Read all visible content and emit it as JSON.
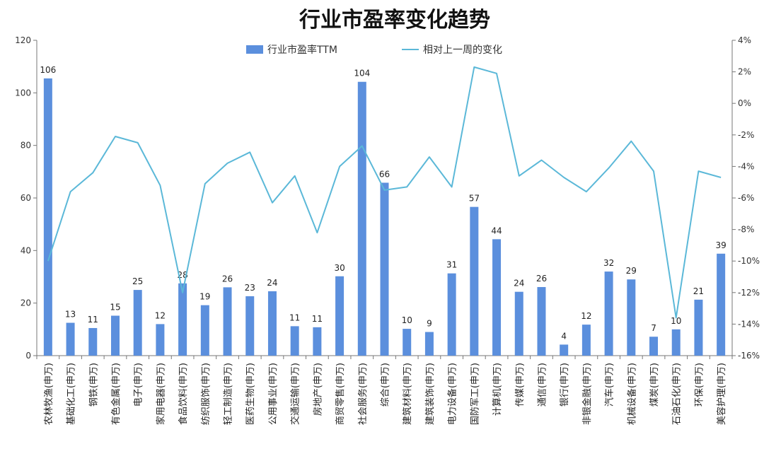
{
  "chart_data": {
    "type": "bar",
    "title": "行业市盈率变化趋势",
    "categories": [
      "农林牧渔(申万)",
      "基础化工(申万)",
      "钢铁(申万)",
      "有色金属(申万)",
      "电子(申万)",
      "家用电器(申万)",
      "食品饮料(申万)",
      "纺织服饰(申万)",
      "轻工制造(申万)",
      "医药生物(申万)",
      "公用事业(申万)",
      "交通运输(申万)",
      "房地产(申万)",
      "商贸零售(申万)",
      "社会服务(申万)",
      "综合(申万)",
      "建筑材料(申万)",
      "建筑装饰(申万)",
      "电力设备(申万)",
      "国防军工(申万)",
      "计算机(申万)",
      "传媒(申万)",
      "通信(申万)",
      "银行(申万)",
      "非银金融(申万)",
      "汽车(申万)",
      "机械设备(申万)",
      "煤炭(申万)",
      "石油石化(申万)",
      "环保(申万)",
      "美容护理(申万)"
    ],
    "series": [
      {
        "name": "行业市盈率TTM",
        "type": "bar",
        "axis": "left",
        "color": "#5b8fdd",
        "values": [
          105.5,
          12.5,
          10.5,
          15.2,
          25,
          12,
          27.5,
          19.2,
          26,
          22.6,
          24.5,
          11.2,
          10.8,
          30.2,
          104.2,
          65.8,
          10.2,
          9,
          31.3,
          56.6,
          44.3,
          24.3,
          26.1,
          4.2,
          11.8,
          32,
          29,
          7.2,
          10,
          21.3,
          38.8
        ],
        "labels": [
          "106",
          "13",
          "11",
          "15",
          "25",
          "12",
          "28",
          "19",
          "26",
          "23",
          "24",
          "11",
          "11",
          "30",
          "104",
          "66",
          "10",
          "9",
          "31",
          "57",
          "44",
          "24",
          "26",
          "4",
          "12",
          "32",
          "29",
          "7",
          "10",
          "21",
          "39"
        ]
      },
      {
        "name": "相对上一周的变化",
        "type": "line",
        "axis": "right",
        "color": "#5bb8d8",
        "values": [
          -10.0,
          -5.6,
          -4.4,
          -2.1,
          -2.5,
          -5.2,
          -12.0,
          -5.1,
          -3.8,
          -3.1,
          -6.3,
          -4.6,
          -8.2,
          -4.0,
          -2.7,
          -5.5,
          -5.3,
          -3.4,
          -5.3,
          2.3,
          1.9,
          -4.6,
          -3.6,
          -4.7,
          -5.6,
          -4.1,
          -2.4,
          -4.3,
          -13.6,
          -4.3,
          -4.7
        ]
      }
    ],
    "left_axis": {
      "ylim": [
        0,
        120
      ],
      "ticks": [
        "0",
        "20",
        "40",
        "60",
        "80",
        "100",
        "120"
      ]
    },
    "right_axis": {
      "ylim": [
        -16,
        4
      ],
      "ticks": [
        "-16%",
        "-14%",
        "-12%",
        "-10%",
        "-8%",
        "-6%",
        "-4%",
        "-2%",
        "0%",
        "2%",
        "4%"
      ]
    },
    "legend": {
      "placement": "top-center"
    },
    "grid": false
  }
}
